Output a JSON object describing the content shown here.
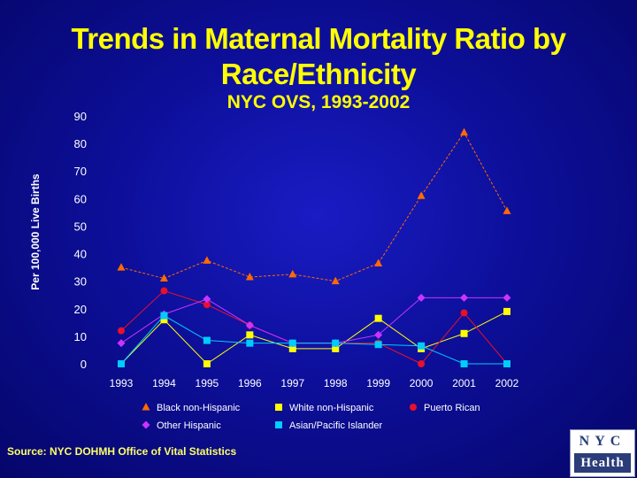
{
  "colors": {
    "background": "#0d0f9a",
    "title": "#ffff00",
    "axis_text": "#ffffff",
    "black_nh": "#ff6a00",
    "white_nh": "#ffff00",
    "puerto_rican": "#e8102a",
    "other_hispanic": "#cc33ff",
    "asian_pi": "#00ccff"
  },
  "source_text": "Source:  NYC DOHMH Office of Vital Statistics",
  "logo": {
    "top": "NYC",
    "bottom": "Health",
    "icon": "nyc-health-logo"
  },
  "chart_data": {
    "type": "line",
    "title": "Trends in Maternal Mortality Ratio by Race/Ethnicity",
    "subtitle": "NYC OVS, 1993-2002",
    "ylabel": "Per 100,000 Live Births",
    "xlabel": "",
    "ylim": [
      0,
      90
    ],
    "yticks": [
      0,
      10,
      20,
      30,
      40,
      50,
      60,
      70,
      80,
      90
    ],
    "x": [
      "1993",
      "1994",
      "1995",
      "1996",
      "1997",
      "1998",
      "1999",
      "2000",
      "2001",
      "2002"
    ],
    "legend_position": "bottom",
    "series": [
      {
        "name": "Black non-Hispanic",
        "marker": "triangle",
        "color": "#ff6a00",
        "values": [
          35,
          31,
          37.5,
          31.5,
          32.5,
          30,
          36.5,
          61,
          84,
          55.5
        ]
      },
      {
        "name": "White non-Hispanic",
        "marker": "square",
        "color": "#ffff00",
        "values": [
          0,
          16,
          0,
          10.5,
          5.5,
          5.5,
          16.5,
          5.5,
          11,
          19
        ]
      },
      {
        "name": "Puerto Rican",
        "marker": "circle",
        "color": "#e8102a",
        "values": [
          12,
          26.5,
          21.5,
          14,
          7.5,
          7.5,
          7.5,
          0,
          18.5,
          0
        ]
      },
      {
        "name": "Other Hispanic",
        "marker": "diamond",
        "color": "#cc33ff",
        "values": [
          7.5,
          18,
          23.5,
          14,
          7.5,
          7.5,
          10.5,
          24,
          24,
          24
        ]
      },
      {
        "name": "Asian/Pacific Islander",
        "marker": "square",
        "color": "#00ccff",
        "values": [
          0,
          17.5,
          8.5,
          7.5,
          7.5,
          7.5,
          7,
          6.5,
          0,
          0
        ]
      }
    ]
  }
}
